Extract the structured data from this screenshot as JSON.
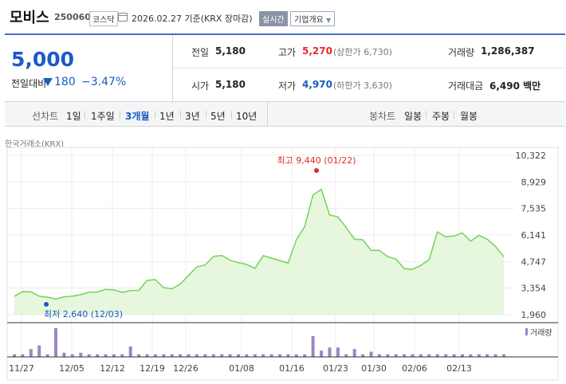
{
  "header": {
    "stock_name": "모비스",
    "stock_code": "250060",
    "market": "코스닥",
    "date_text": "2026.02.27  기준(KRX 장마감)",
    "realtime_label": "실시간",
    "company_info_label": "기업개요"
  },
  "price": {
    "current": "5,000",
    "diff_label": "전일대비",
    "diff_amount": "180",
    "diff_percent": "−3.47%",
    "diff_direction": "down"
  },
  "stats": {
    "prev_label": "전일",
    "prev_value": "5,180",
    "high_label": "고가",
    "high_value": "5,270",
    "upper_limit": "(상한가 6,730)",
    "volume_label": "거래량",
    "volume_value": "1,286,387",
    "open_label": "시가",
    "open_value": "5,180",
    "low_label": "저가",
    "low_value": "4,970",
    "lower_limit": "(하한가 3,630)",
    "amount_label": "거래대금",
    "amount_value": "6,490 백만"
  },
  "period_bar": {
    "line_chart_label": "선차트",
    "line_periods": [
      "1일",
      "1주일",
      "3개월",
      "1년",
      "3년",
      "5년",
      "10년"
    ],
    "active_period": "3개월",
    "candle_chart_label": "봉차트",
    "candle_periods": [
      "일봉",
      "주봉",
      "월봉"
    ]
  },
  "exchange_label": "한국거래소(KRX)",
  "colors": {
    "down": "#1a5bc4",
    "up": "#e12b2b",
    "line": "#72d35a",
    "fill": "#e6f7dd",
    "volume": "#9b86c4"
  },
  "chart_data": {
    "type": "area",
    "y_ticks": [
      "10,322",
      "8,929",
      "7,535",
      "6,141",
      "4,747",
      "3,354",
      "1,960"
    ],
    "ylim": [
      1960,
      10322
    ],
    "x_tick_labels": [
      "11/27",
      "12/05",
      "12/12",
      "12/19",
      "12/26",
      "01/08",
      "01/16",
      "01/23",
      "01/30",
      "02/06",
      "02/13"
    ],
    "max_annotation": "최고 9,440 (01/22)",
    "min_annotation": "최저 2,640 (12/03)",
    "volume_label": "거래량",
    "price": [
      2930,
      3170,
      3160,
      2930,
      2880,
      2780,
      2900,
      2930,
      3010,
      3140,
      3150,
      3290,
      3260,
      3130,
      3230,
      3230,
      3760,
      3800,
      3380,
      3320,
      3560,
      4020,
      4470,
      4570,
      5020,
      5070,
      4820,
      4690,
      4600,
      4390,
      5060,
      4930,
      4800,
      4670,
      5900,
      6580,
      8240,
      8540,
      7190,
      7090,
      6530,
      5920,
      5890,
      5340,
      5340,
      5010,
      4880,
      4380,
      4340,
      4550,
      4850,
      6310,
      6040,
      6090,
      6250,
      5820,
      6120,
      5920,
      5540,
      5000
    ],
    "volume": [
      5,
      5,
      15,
      22,
      5,
      55,
      8,
      5,
      8,
      5,
      5,
      5,
      5,
      5,
      20,
      5,
      5,
      5,
      5,
      5,
      5,
      5,
      5,
      5,
      5,
      5,
      5,
      5,
      5,
      5,
      5,
      5,
      5,
      5,
      5,
      5,
      40,
      12,
      18,
      18,
      5,
      15,
      5,
      10,
      5,
      5,
      5,
      5,
      5,
      5,
      5,
      5,
      5,
      5,
      5,
      5,
      5,
      5,
      5,
      5
    ]
  }
}
